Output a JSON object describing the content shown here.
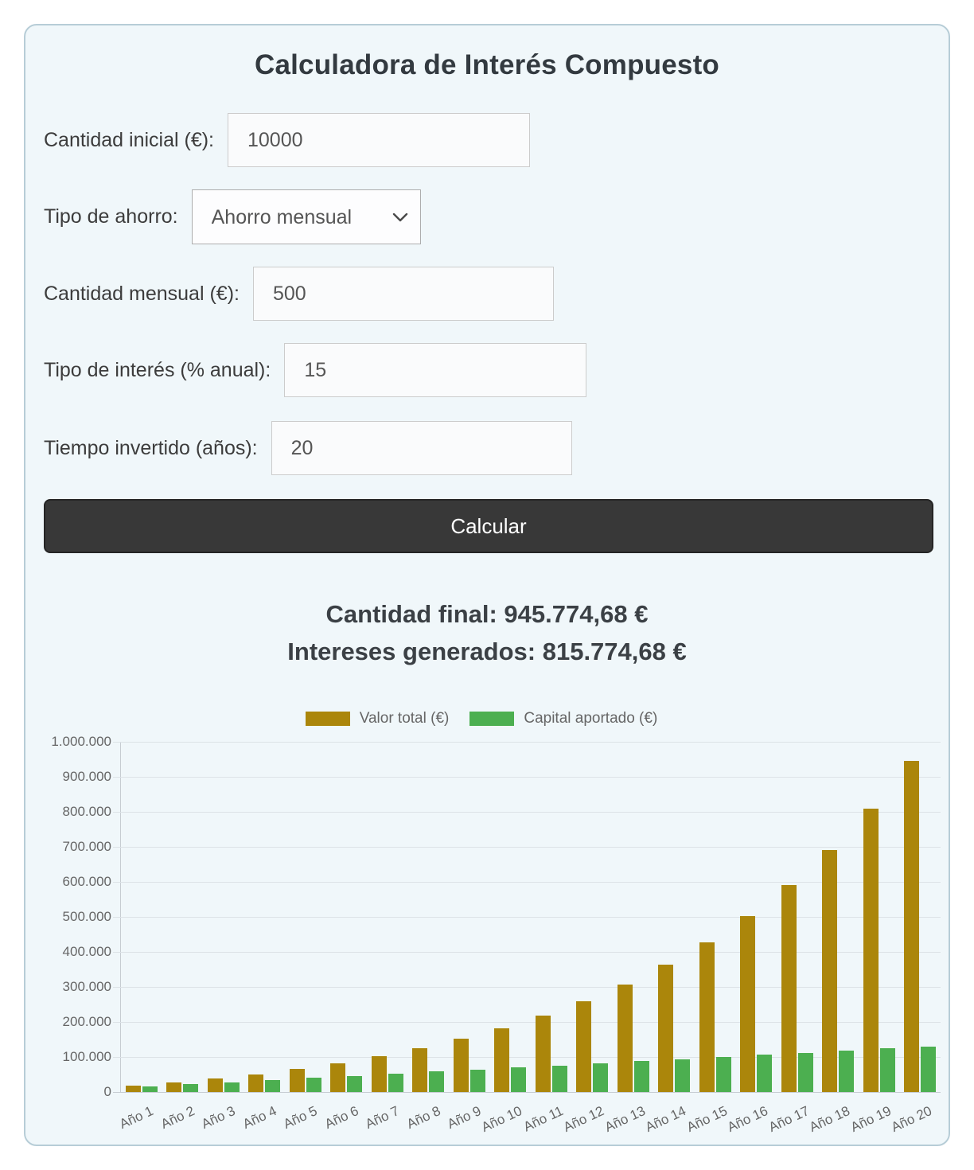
{
  "card": {
    "title": "Calculadora de Interés Compuesto",
    "fields": [
      {
        "label": "Cantidad inicial (€):",
        "value": "10000"
      },
      {
        "label": "Tipo de ahorro:",
        "value": "Ahorro mensual"
      },
      {
        "label": "Cantidad mensual (€):",
        "value": "500"
      },
      {
        "label": "Tipo de interés (% anual):",
        "value": "15"
      },
      {
        "label": "Tiempo invertido (años):",
        "value": "20"
      }
    ],
    "button_label": "Calcular",
    "results": {
      "final_line": "Cantidad final: 945.774,68 €",
      "interest_line": "Intereses generados: 815.774,68 €"
    }
  },
  "chart_data": {
    "type": "bar",
    "categories": [
      "Año 1",
      "Año 2",
      "Año 3",
      "Año 4",
      "Año 5",
      "Año 6",
      "Año 7",
      "Año 8",
      "Año 9",
      "Año 10",
      "Año 11",
      "Año 12",
      "Año 13",
      "Año 14",
      "Año 15",
      "Año 16",
      "Año 17",
      "Año 18",
      "Año 19",
      "Año 20"
    ],
    "series": [
      {
        "name": "Valor total (€)",
        "color": "#AB860B",
        "values": [
          18038,
          27368,
          38199,
          50781,
          65383,
          82335,
          102014,
          124857,
          151374,
          182011,
          217700,
          259126,
          307219,
          363044,
          427850,
          503068,
          590384,
          691738,
          809386,
          945775
        ]
      },
      {
        "name": "Capital aportado (€)",
        "color": "#4CAF50",
        "values": [
          16000,
          22000,
          28000,
          34000,
          40000,
          46000,
          52000,
          58000,
          64000,
          70000,
          76000,
          82000,
          88000,
          94000,
          100000,
          106000,
          112000,
          118000,
          124000,
          130000
        ]
      }
    ],
    "ylim": [
      0,
      1000000
    ],
    "ytick_values": [
      0,
      100000,
      200000,
      300000,
      400000,
      500000,
      600000,
      700000,
      800000,
      900000,
      1000000
    ],
    "ytick_labels": [
      "0",
      "100.000",
      "200.000",
      "300.000",
      "400.000",
      "500.000",
      "600.000",
      "700.000",
      "800.000",
      "900.000",
      "1.000.000"
    ],
    "legend_position": "top",
    "grid": true,
    "xtick_rotation_deg": -25
  }
}
